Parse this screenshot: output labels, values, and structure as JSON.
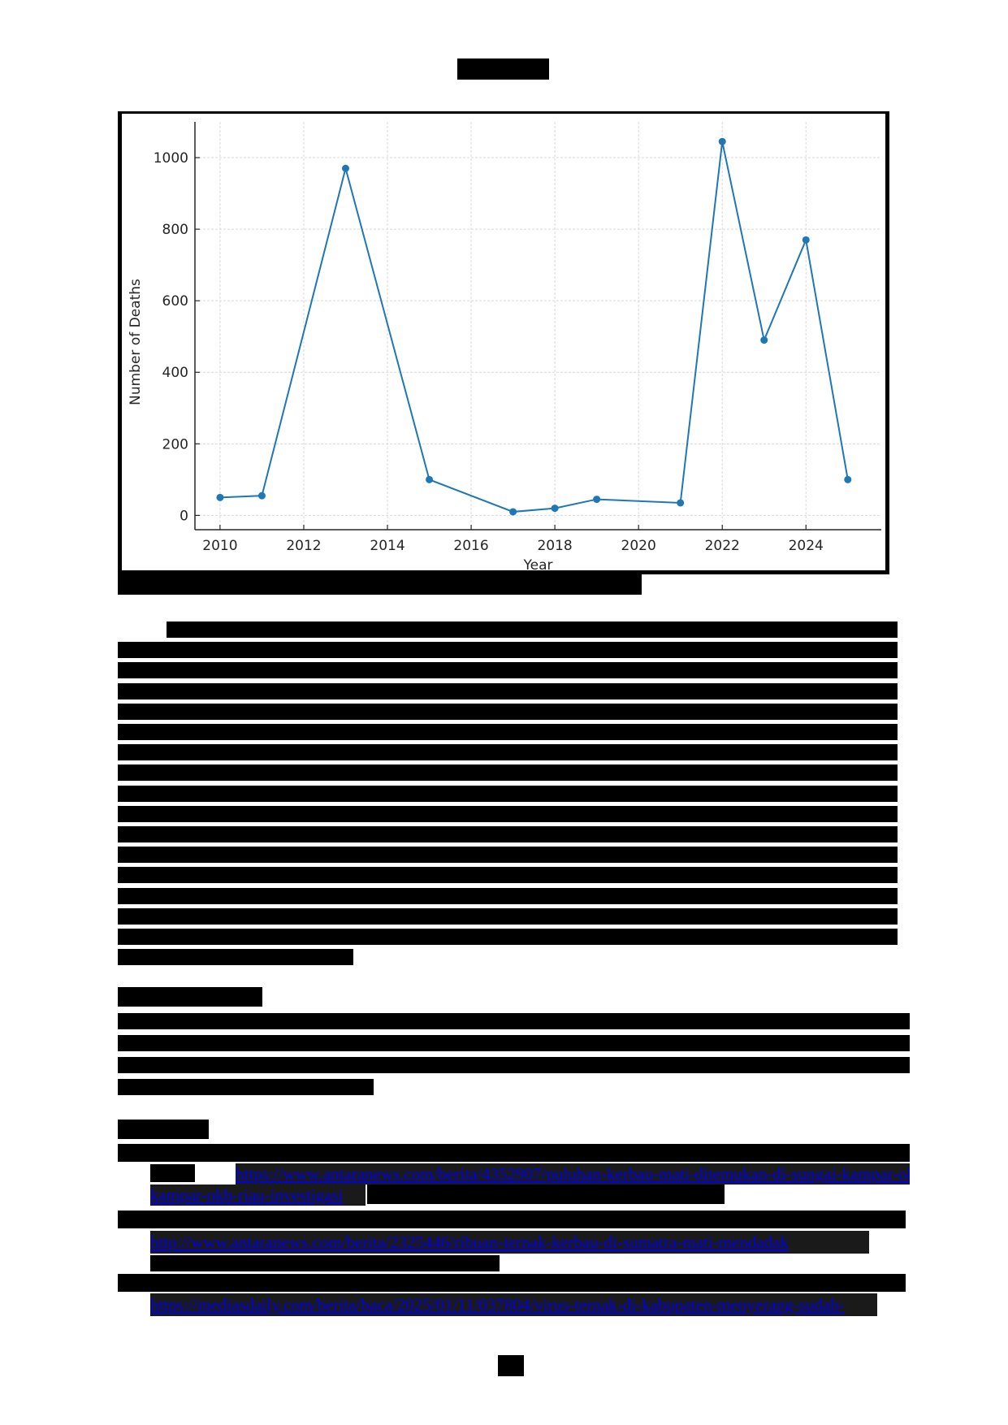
{
  "document": {
    "title": "[redacted heading]",
    "figure_caption": "[redacted figure caption]",
    "body_paragraph": "[redacted body paragraph - approximately 17 lines of text]",
    "subheading": "[redacted subheading]",
    "second_paragraph": "[redacted paragraph - 4 lines]",
    "references_heading": "[redacted: References]",
    "references": [
      {
        "text": "[redacted reference text]",
        "url": "https://www.antaranews.com/berita/4352907/puluhan-kerbau-mati-ditemukan-di-sungai-kampar-okb-riau-investigasi"
      },
      {
        "text": "[redacted reference text]",
        "url": "http://www.antaranews.com/berita/2325446/ribuan-ternak-kerbau-di-sumatra-mati-mendadak"
      },
      {
        "text": "[redacted reference text]",
        "url": "https://mediasdaily.com/berita/baca/2025/01/11/037804/virus-ternak-di-kabupaten-menyerang-sudah-"
      }
    ],
    "page_number": "[redacted]"
  },
  "chart_data": {
    "type": "line",
    "title": "",
    "xlabel": "Year",
    "ylabel": "Number of Deaths",
    "x": [
      2010,
      2011,
      2013,
      2015,
      2017,
      2018,
      2019,
      2021,
      2022,
      2023,
      2024,
      2025
    ],
    "series": [
      {
        "name": "Number of Deaths",
        "values": [
          50,
          55,
          970,
          100,
          10,
          20,
          45,
          35,
          1045,
          490,
          770,
          100
        ],
        "color": "#1f77b4"
      }
    ],
    "xticks": [
      "2010",
      "2012",
      "2014",
      "2016",
      "2018",
      "2020",
      "2022",
      "2024"
    ],
    "yticks": [
      "0",
      "200",
      "400",
      "600",
      "800",
      "1000"
    ],
    "xlim": [
      2009.4,
      2025.8
    ],
    "ylim": [
      -40,
      1100
    ],
    "grid": true,
    "legend": "none"
  },
  "colors": {
    "line": "#1f77b4",
    "grid": "#d9d9d9",
    "axis": "#262626",
    "link": "#0000ee",
    "redaction": "#000000"
  }
}
